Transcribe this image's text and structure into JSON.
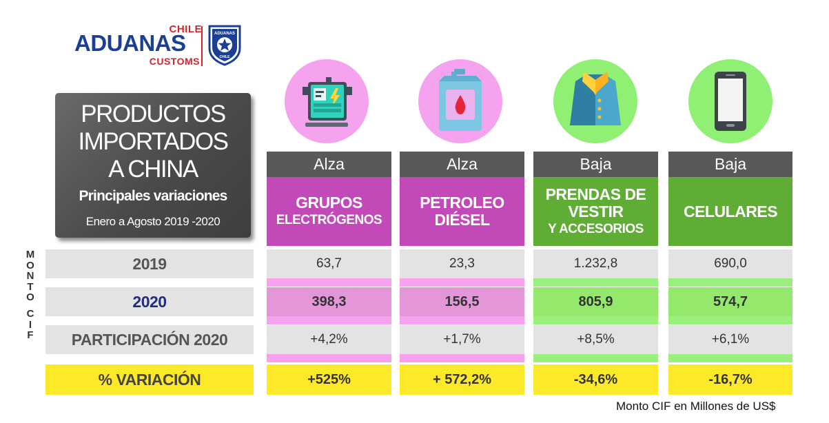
{
  "logo": {
    "chile": "CHILE",
    "aduanas": "ADUANAS",
    "customs": "CUSTOMS",
    "badge_top": "ADUANAS",
    "badge_bottom": "CHILE",
    "colors": {
      "red": "#d6232a",
      "blue": "#1b3f94"
    }
  },
  "title": {
    "lines": [
      "PRODUCTOS",
      "IMPORTADOS",
      "A CHINA"
    ],
    "subtitle": "Principales variaciones",
    "period": "Enero a  Agosto 2019 -2020"
  },
  "side_label": [
    "M",
    "O",
    "N",
    "T",
    "O",
    "",
    "C",
    "I",
    "F"
  ],
  "row_labels": {
    "y2019": "2019",
    "y2020": "2020",
    "participacion": "PARTICIPACIÓN 2020",
    "variacion": "% VARIACIÓN"
  },
  "products": [
    {
      "trend": "Alza",
      "name_lines": [
        "GRUPOS",
        "ELECTRÓGENOS"
      ],
      "icon": "generator-icon",
      "theme": "magenta",
      "v2019": "63,7",
      "v2020": "398,3",
      "participacion": "+4,2%",
      "variacion": "+525%"
    },
    {
      "trend": "Alza",
      "name_lines": [
        "PETROLEO",
        "DIÉSEL"
      ],
      "icon": "fuel-canister-icon",
      "theme": "magenta",
      "v2019": "23,3",
      "v2020": "156,5",
      "participacion": "+1,7%",
      "variacion": "+ 572,2%"
    },
    {
      "trend": "Baja",
      "name_lines": [
        "PRENDAS DE",
        "VESTIR",
        "Y ACCESORIOS"
      ],
      "icon": "shirt-icon",
      "theme": "green",
      "v2019": "1.232,8",
      "v2020": "805,9",
      "participacion": "+8,5%",
      "variacion": "-34,6%"
    },
    {
      "trend": "Baja",
      "name_lines": [
        "CELULARES"
      ],
      "icon": "cellphone-icon",
      "theme": "green",
      "v2019": "690,0",
      "v2020": "574,7",
      "participacion": "+6,1%",
      "variacion": "-16,7%"
    }
  ],
  "colors": {
    "magenta_header": "#c348b8",
    "magenta_circle": "#f5a3ee",
    "magenta_2020": "#e397d9",
    "magenta_strip": "#f6a2ef",
    "green_header": "#60ad35",
    "green_circle": "#8ff074",
    "green_2020": "#94e86c",
    "green_strip": "#9aef7d",
    "gray_row": "#e3e3e3",
    "trend_header": "#595959",
    "yellow": "#fcea2a"
  },
  "footnote": "Monto CIF en Millones de US$"
}
